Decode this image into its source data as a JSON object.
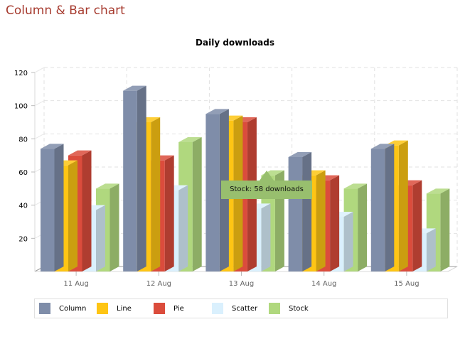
{
  "page": {
    "title": "Column & Bar chart"
  },
  "chart_data": {
    "type": "bar",
    "variant": "3d-column-grouped",
    "title": "Daily downloads",
    "xlabel": "",
    "ylabel": "",
    "ylim": [
      0,
      120
    ],
    "yticks": [
      20,
      40,
      60,
      80,
      100,
      120
    ],
    "grid": true,
    "legend_position": "bottom",
    "categories": [
      "11 Aug",
      "12 Aug",
      "13 Aug",
      "14 Aug",
      "15 Aug"
    ],
    "series": [
      {
        "name": "Column",
        "color": "#7f8da9",
        "values": [
          74,
          109,
          95,
          69,
          74
        ]
      },
      {
        "name": "Line",
        "color": "#fec514",
        "values": [
          64,
          90,
          91,
          58,
          76
        ]
      },
      {
        "name": "Pie",
        "color": "#db4c3c",
        "values": [
          70,
          67,
          90,
          55,
          52
        ]
      },
      {
        "name": "Scatter",
        "color": "#daf0fd",
        "values": [
          37,
          49,
          38,
          33,
          23
        ]
      },
      {
        "name": "Stock",
        "color": "#b0d87e",
        "values": [
          50,
          78,
          58,
          50,
          47
        ]
      }
    ],
    "tooltip": {
      "text": "Stock: 58 downloads",
      "series": "Stock",
      "category": "13 Aug",
      "value": 58
    }
  },
  "legend": {
    "items": [
      {
        "label": "Column",
        "color": "#7f8da9"
      },
      {
        "label": "Line",
        "color": "#fec514"
      },
      {
        "label": "Pie",
        "color": "#db4c3c"
      },
      {
        "label": "Scatter",
        "color": "#daf0fd"
      },
      {
        "label": "Stock",
        "color": "#b0d87e"
      }
    ]
  }
}
